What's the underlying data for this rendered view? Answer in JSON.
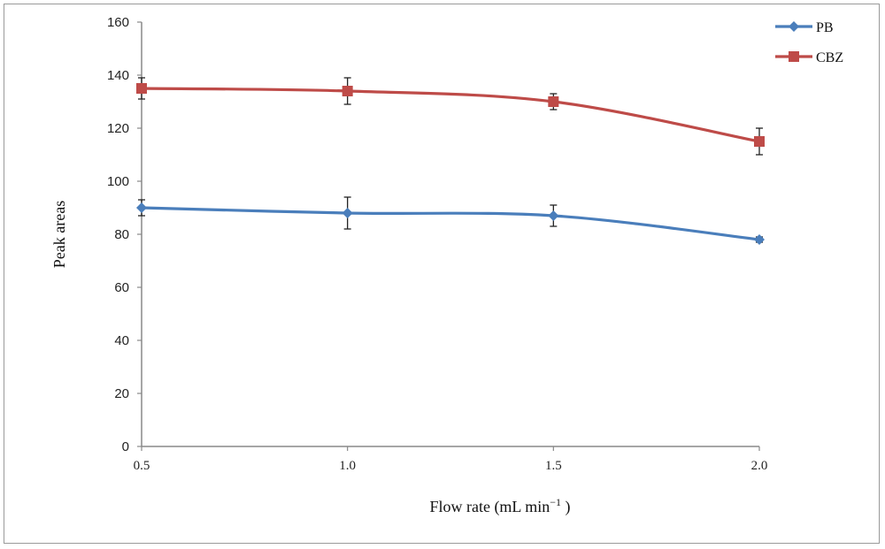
{
  "chart_data": {
    "type": "line",
    "x": [
      0.5,
      1.0,
      1.5,
      2.0
    ],
    "x_tick_labels": [
      "0.5",
      "1.0",
      "1.5",
      "2.0"
    ],
    "y_tick_labels": [
      "0",
      "20",
      "40",
      "60",
      "80",
      "100",
      "120",
      "140",
      "160"
    ],
    "xlabel_main": "Flow rate (mL min",
    "xlabel_sup": "−1",
    "xlabel_close": " )",
    "ylabel": "Peak areas",
    "ylim": [
      0,
      160
    ],
    "xlim": [
      0.5,
      2.0
    ],
    "grid": false,
    "legend_position": "top-right",
    "series": [
      {
        "name": "PB",
        "values": [
          90,
          88,
          87,
          78
        ],
        "errors": [
          3,
          6,
          4,
          1
        ],
        "color": "#4a7ebb",
        "marker": "diamond"
      },
      {
        "name": "CBZ",
        "values": [
          135,
          134,
          130,
          115
        ],
        "errors": [
          4,
          5,
          3,
          5
        ],
        "color": "#be4b48",
        "marker": "square"
      }
    ]
  }
}
